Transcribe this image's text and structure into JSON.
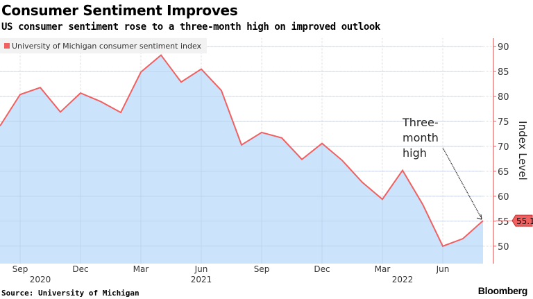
{
  "title": "Consumer Sentiment Improves",
  "subtitle": "US consumer sentiment rose to a three-month high on improved outlook",
  "source": "Source: University of Michigan",
  "logo": "Bloomberg",
  "chart_data": {
    "type": "area",
    "x": [
      "2020-08",
      "2020-09",
      "2020-10",
      "2020-11",
      "2020-12",
      "2021-01",
      "2021-02",
      "2021-03",
      "2021-04",
      "2021-05",
      "2021-06",
      "2021-07",
      "2021-08",
      "2021-09",
      "2021-10",
      "2021-11",
      "2021-12",
      "2022-01",
      "2022-02",
      "2022-03",
      "2022-04",
      "2022-05",
      "2022-06",
      "2022-07",
      "2022-08"
    ],
    "series": [
      {
        "name": "University of Michigan consumer sentiment index",
        "values": [
          74.1,
          80.4,
          81.8,
          76.9,
          80.7,
          79.0,
          76.8,
          84.9,
          88.3,
          82.9,
          85.5,
          81.2,
          70.3,
          72.8,
          71.7,
          67.4,
          70.6,
          67.2,
          62.8,
          59.4,
          65.2,
          58.4,
          50.0,
          51.5,
          55.1
        ],
        "line_color": "#f06060",
        "fill_color": "#c8e1fb"
      }
    ],
    "ylabel": "Index Level",
    "ylim": [
      46.5,
      91.7
    ],
    "yticks": [
      50,
      55,
      60,
      65,
      70,
      75,
      80,
      85,
      90
    ],
    "xticks": [
      {
        "label": "Sep",
        "x": "2020-09"
      },
      {
        "label": "Dec",
        "x": "2020-12"
      },
      {
        "label": "Mar",
        "x": "2021-03"
      },
      {
        "label": "Jun",
        "x": "2021-06"
      },
      {
        "label": "Sep",
        "x": "2021-09"
      },
      {
        "label": "Dec",
        "x": "2021-12"
      },
      {
        "label": "Mar",
        "x": "2022-03"
      },
      {
        "label": "Jun",
        "x": "2022-06"
      }
    ],
    "years": [
      {
        "label": "2020",
        "x": "2020-10"
      },
      {
        "label": "2021",
        "x": "2021-06"
      },
      {
        "label": "2022",
        "x": "2022-04"
      }
    ],
    "last_value_label": "55.1",
    "annotation": {
      "lines": [
        "Three-",
        "month",
        "high"
      ],
      "target": "2022-08"
    },
    "grid": true,
    "legend": "top-left",
    "axis_side": "right"
  }
}
